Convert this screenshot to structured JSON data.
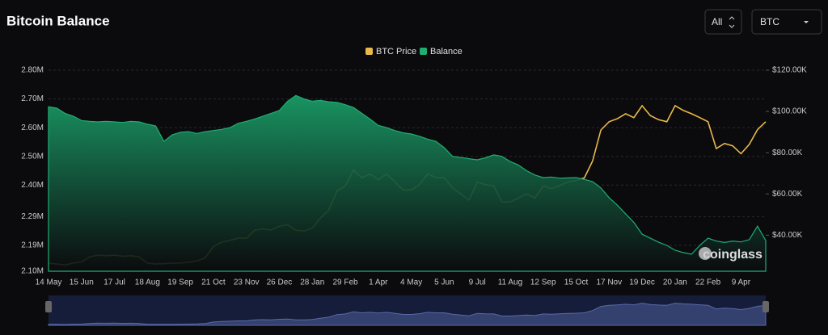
{
  "chart_data": {
    "type": "area-line",
    "title": "Bitcoin Balance",
    "ui": {
      "range_select": "All",
      "coin_select": "BTC",
      "watermark": "coinglass"
    },
    "categories": [
      "14 May",
      null,
      null,
      null,
      "15 Jun",
      null,
      null,
      null,
      "17 Jul",
      null,
      null,
      null,
      "18 Aug",
      null,
      null,
      null,
      "19 Sep",
      null,
      null,
      null,
      "21 Oct",
      null,
      null,
      null,
      "23 Nov",
      null,
      null,
      null,
      "26 Dec",
      null,
      null,
      null,
      "28 Jan",
      null,
      null,
      null,
      "29 Feb",
      null,
      null,
      null,
      "1 Apr",
      null,
      null,
      null,
      "4 May",
      null,
      null,
      null,
      "5 Jun",
      null,
      null,
      null,
      "9 Jul",
      null,
      null,
      null,
      "11 Aug",
      null,
      null,
      null,
      "12 Sep",
      null,
      null,
      null,
      "15 Oct",
      null,
      null,
      null,
      "17 Nov",
      null,
      null,
      null,
      "19 Dec",
      null,
      null,
      null,
      "20 Jan",
      null,
      null,
      null,
      "22 Feb",
      null,
      null,
      null,
      "9 Apr",
      null,
      null,
      null
    ],
    "series": [
      {
        "name": "BTC Price",
        "color": "#e9b949",
        "axis": "y2",
        "values": [
          26400,
          26000,
          25500,
          26500,
          27000,
          29500,
          30300,
          30000,
          30300,
          29800,
          30000,
          29500,
          26400,
          26000,
          26200,
          26400,
          26500,
          26800,
          27500,
          29000,
          34500,
          36600,
          37500,
          38500,
          38500,
          42400,
          43000,
          42500,
          44400,
          45000,
          42400,
          42000,
          43500,
          48300,
          52200,
          61500,
          63900,
          71700,
          67800,
          69700,
          67000,
          69700,
          66000,
          61900,
          61900,
          64600,
          69700,
          68000,
          67800,
          63000,
          60000,
          57000,
          65800,
          64500,
          63900,
          56100,
          56100,
          58000,
          60000,
          58000,
          63900,
          62500,
          64000,
          65800,
          66500,
          67800,
          76000,
          91000,
          95000,
          96500,
          98900,
          97000,
          102800,
          98000,
          96000,
          95000,
          102800,
          100500,
          98900,
          97000,
          95000,
          82000,
          84500,
          83300,
          79500,
          84000,
          91200,
          95000
        ]
      },
      {
        "name": "Balance",
        "color": "#1fae72",
        "values": [
          2673000,
          2668000,
          2650000,
          2640000,
          2625000,
          2622000,
          2620000,
          2622000,
          2620000,
          2618000,
          2622000,
          2620000,
          2612000,
          2606000,
          2552000,
          2575000,
          2584000,
          2586000,
          2580000,
          2586000,
          2590000,
          2594000,
          2600000,
          2615000,
          2622000,
          2630000,
          2640000,
          2650000,
          2660000,
          2692000,
          2712000,
          2700000,
          2692000,
          2695000,
          2690000,
          2688000,
          2680000,
          2670000,
          2650000,
          2630000,
          2608000,
          2600000,
          2590000,
          2582000,
          2578000,
          2570000,
          2560000,
          2552000,
          2530000,
          2500000,
          2496000,
          2492000,
          2488000,
          2495000,
          2505000,
          2500000,
          2482000,
          2470000,
          2450000,
          2435000,
          2426000,
          2428000,
          2424000,
          2425000,
          2426000,
          2420000,
          2412000,
          2390000,
          2356000,
          2330000,
          2300000,
          2270000,
          2229000,
          2215000,
          2201000,
          2190000,
          2173000,
          2165000,
          2159000,
          2190000,
          2215000,
          2205000,
          2200000,
          2205000,
          2202000,
          2210000,
          2257000,
          2207000
        ]
      }
    ],
    "ylim": [
      2100000,
      2800000
    ],
    "yticks": [
      {
        "value": 2100000,
        "label": "2.10M"
      },
      {
        "value": 2190000,
        "label": "2.19M"
      },
      {
        "value": 2290000,
        "label": "2.29M"
      },
      {
        "value": 2400000,
        "label": "2.40M"
      },
      {
        "value": 2500000,
        "label": "2.50M"
      },
      {
        "value": 2600000,
        "label": "2.60M"
      },
      {
        "value": 2700000,
        "label": "2.70M"
      },
      {
        "value": 2800000,
        "label": "2.80M"
      }
    ],
    "y2lim": [
      22500,
      120000
    ],
    "y2ticks": [
      {
        "value": 40000,
        "label": "$40.00K"
      },
      {
        "value": 60000,
        "label": "$60.00K"
      },
      {
        "value": 80000,
        "label": "$80.00K"
      },
      {
        "value": 100000,
        "label": "$100.00K"
      },
      {
        "value": 120000,
        "label": "$120.00K"
      }
    ],
    "grid": true,
    "legend": "top"
  }
}
